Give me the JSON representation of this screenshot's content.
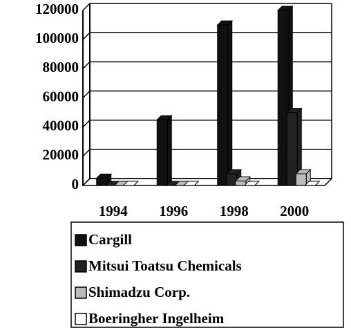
{
  "chart_data": {
    "type": "bar",
    "categories": [
      "1994",
      "1996",
      "1998",
      "2000"
    ],
    "series": [
      {
        "name": "Cargill",
        "color": "#111111",
        "values": [
          5000,
          45000,
          110000,
          120000
        ]
      },
      {
        "name": "Mitsui Toatsu Chemicals",
        "color": "#222222",
        "values": [
          0,
          0,
          8000,
          50000
        ]
      },
      {
        "name": "Shimadzu Corp.",
        "color": "#bbbbbb",
        "values": [
          0,
          0,
          3000,
          8000
        ]
      },
      {
        "name": "Boeringher Ingelheim",
        "color": "#ffffff",
        "values": [
          0,
          0,
          0,
          0
        ]
      }
    ],
    "ylim": [
      0,
      120000
    ],
    "yticks": [
      0,
      20000,
      40000,
      60000,
      80000,
      100000,
      120000
    ],
    "grid": true
  }
}
